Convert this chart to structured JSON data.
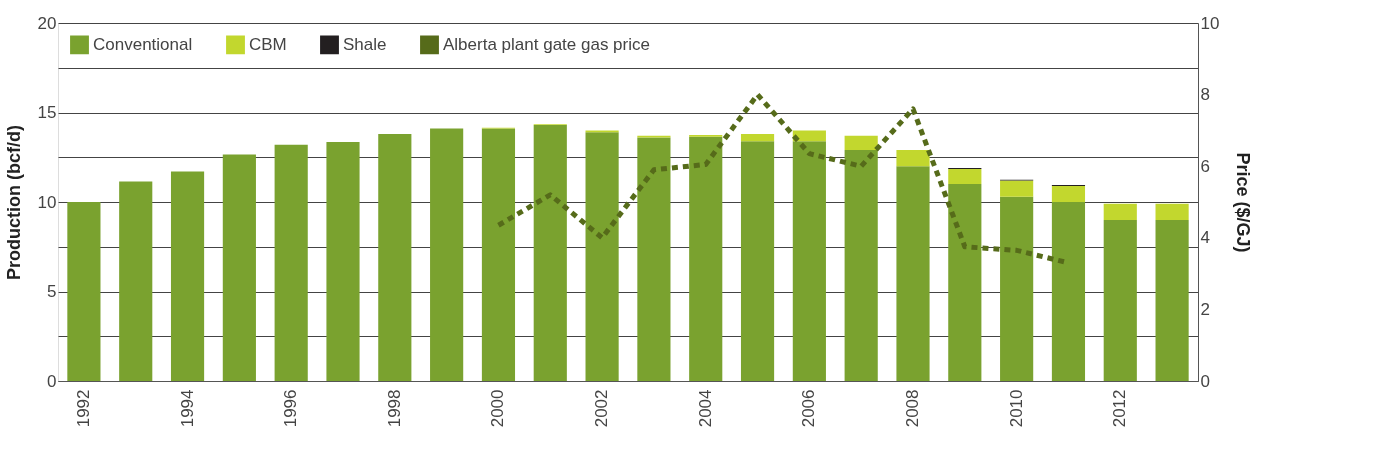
{
  "chart_data": {
    "type": "bar",
    "stacked": true,
    "xlabel": null,
    "ylabel": "Production (bcf/d)",
    "y2label": "Price ($/GJ)",
    "categories": [
      "1992",
      null,
      "1994",
      null,
      "1996",
      null,
      "1998",
      null,
      "2000",
      null,
      "2002",
      null,
      "2004",
      null,
      "2006",
      null,
      "2008",
      null,
      "2010",
      null,
      "2012",
      null
    ],
    "series": [
      {
        "name": "Conventional",
        "color": "#7aa22f",
        "values": [
          10.0,
          11.15,
          11.7,
          12.65,
          13.2,
          13.35,
          13.8,
          14.1,
          14.1,
          14.3,
          13.9,
          13.6,
          13.65,
          13.4,
          13.4,
          12.9,
          12.0,
          11.0,
          10.3,
          10.0,
          9.0,
          9.0
        ]
      },
      {
        "name": "CBM",
        "color": "#c2d72e",
        "values": [
          0,
          0,
          0,
          0,
          0,
          0,
          0,
          0,
          0.05,
          0.05,
          0.1,
          0.1,
          0.1,
          0.4,
          0.6,
          0.8,
          0.9,
          0.85,
          0.9,
          0.9,
          0.9,
          0.9
        ]
      },
      {
        "name": "Shale",
        "color": "#231f20",
        "values": [
          0,
          0,
          0,
          0,
          0,
          0,
          0,
          0,
          0,
          0,
          0,
          0,
          0,
          0,
          0,
          0,
          0,
          0.05,
          0.05,
          0.05,
          0,
          0
        ]
      },
      {
        "name": "Alberta plant gate gas price",
        "type": "line",
        "axis": "y2",
        "color": "#566b1a",
        "line_style": "dashed",
        "values": [
          null,
          null,
          null,
          null,
          null,
          null,
          null,
          null,
          4.35,
          5.2,
          4.0,
          5.9,
          6.05,
          8.0,
          6.35,
          6.0,
          7.6,
          3.75,
          3.65,
          3.3,
          null,
          null
        ]
      }
    ],
    "ylim": [
      0,
      20
    ],
    "yticks": [
      0,
      {
        "value": 2.5,
        "label": null
      },
      5,
      {
        "value": 7.5,
        "label": null
      },
      10,
      {
        "value": 12.5,
        "label": null
      },
      15,
      {
        "value": 17.5,
        "label": null
      },
      20
    ],
    "y2lim": [
      0,
      10
    ],
    "y2ticks": [
      0,
      2,
      4,
      6,
      8,
      10
    ],
    "grid": "y",
    "legend": "top left",
    "marker": "none"
  }
}
